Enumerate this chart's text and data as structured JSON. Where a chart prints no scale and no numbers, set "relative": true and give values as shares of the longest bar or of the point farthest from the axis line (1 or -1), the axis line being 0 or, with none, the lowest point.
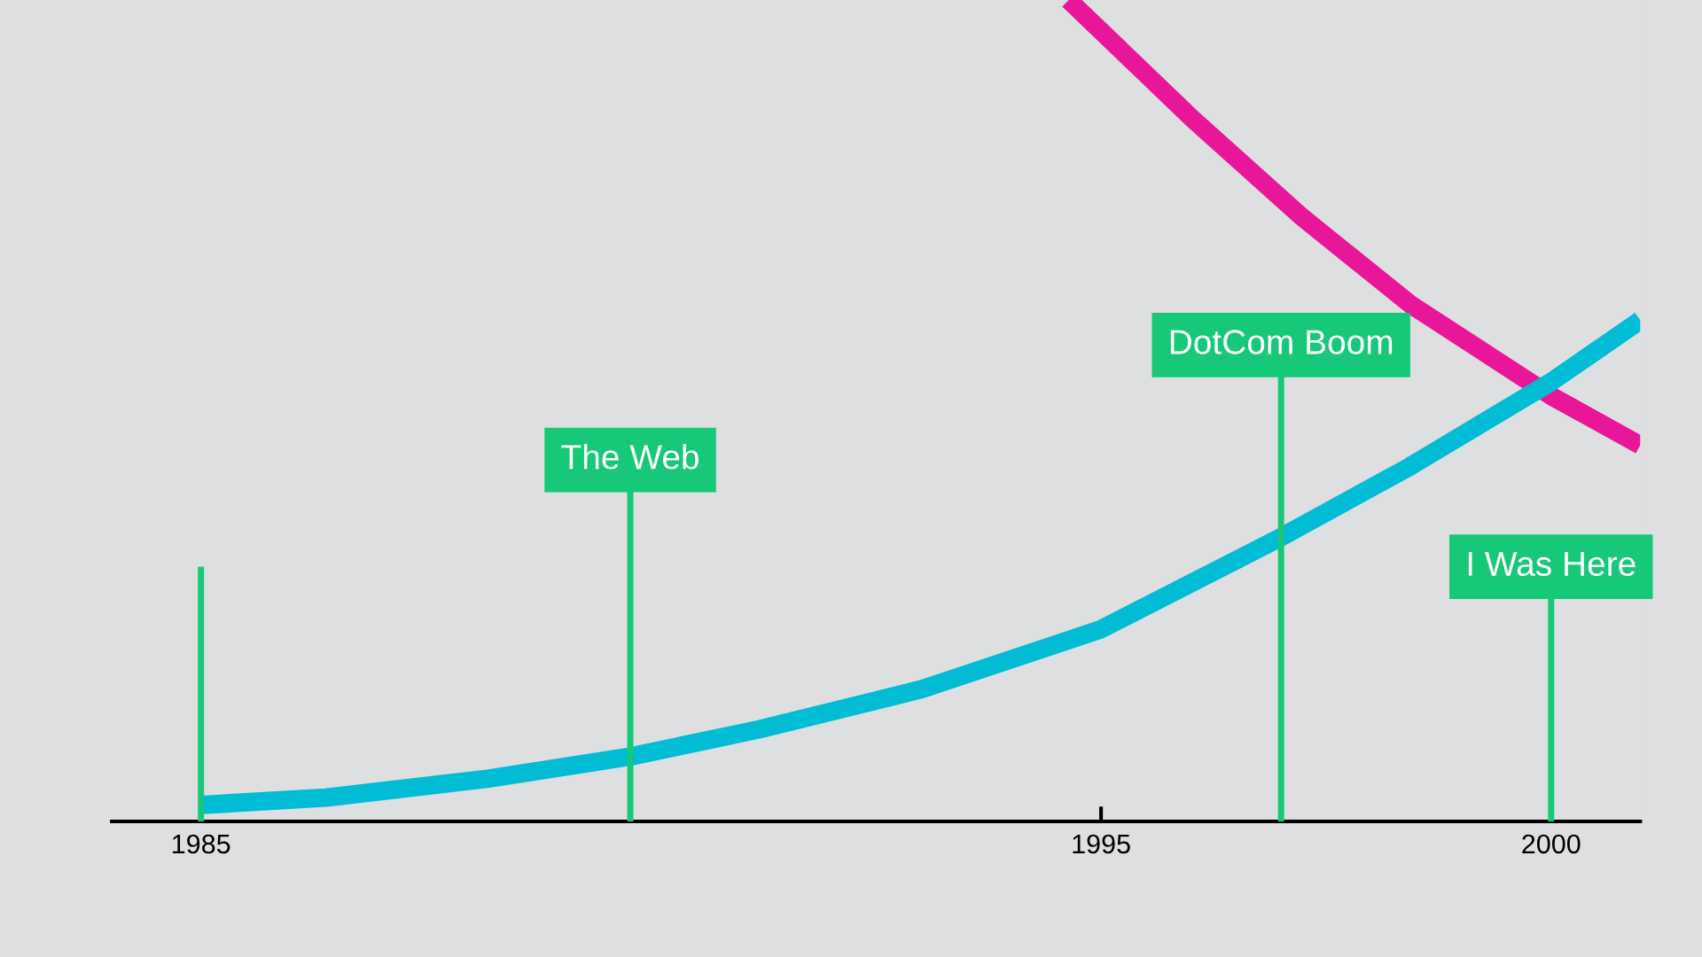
{
  "chart_data": {
    "type": "line",
    "relative": true,
    "xlim": [
      1984.01,
      2000.99
    ],
    "xticks": [
      1985,
      1995,
      2000
    ],
    "series": [
      {
        "color": "#e8179a",
        "x": [
          1994.64,
          1996.02,
          1997.23,
          1998.43,
          2000,
          2000.99
        ],
        "values": [
          1,
          0.855,
          0.736,
          0.63,
          0.518,
          0.458
        ]
      },
      {
        "color": "#00bcd4",
        "x": [
          1985,
          1986.39,
          1988.19,
          1989.77,
          1991.2,
          1993.01,
          1995,
          1997,
          1998.43,
          2000,
          2000.99
        ],
        "values": [
          0.02,
          0.029,
          0.052,
          0.079,
          0.112,
          0.161,
          0.234,
          0.346,
          0.432,
          0.535,
          0.61
        ]
      }
    ],
    "ref_lines": [
      {
        "axis": "x",
        "value": 1985,
        "label": null,
        "color": "#16c877"
      },
      {
        "axis": "x",
        "value": 1989.77,
        "label": "The Web",
        "color": "#16c877"
      },
      {
        "axis": "x",
        "value": 1997,
        "label": "DotCom Boom",
        "color": "#16c877"
      },
      {
        "axis": "x",
        "value": 2000,
        "label": "I Was Here",
        "color": "#16c877"
      }
    ]
  }
}
